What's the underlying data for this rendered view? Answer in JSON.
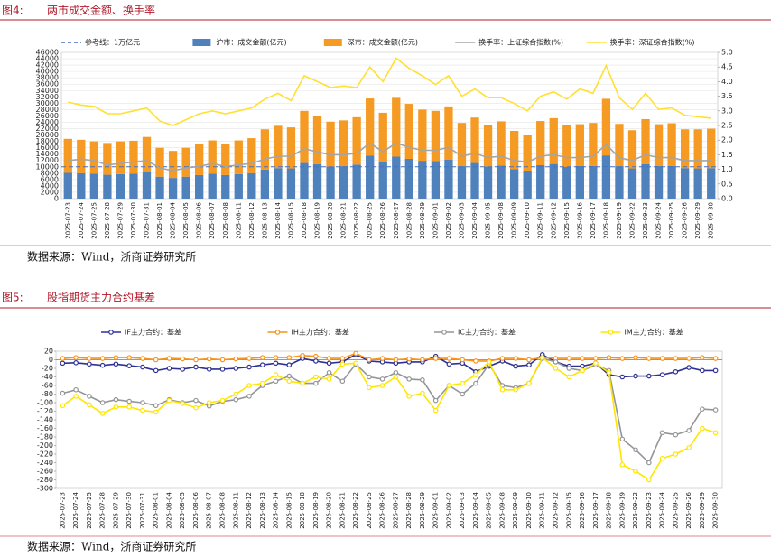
{
  "chart_data": [
    {
      "type": "bar",
      "figure_label": "图4:",
      "title": "两市成交金额、换手率",
      "source": "数据来源：Wind，浙商证券研究所",
      "grid": true,
      "categories": [
        "2025-07-23",
        "2025-07-24",
        "2025-07-25",
        "2025-07-28",
        "2025-07-29",
        "2025-07-30",
        "2025-07-31",
        "2025-08-01",
        "2025-08-04",
        "2025-08-05",
        "2025-08-06",
        "2025-08-07",
        "2025-08-08",
        "2025-08-11",
        "2025-08-12",
        "2025-08-13",
        "2025-08-14",
        "2025-08-15",
        "2025-08-18",
        "2025-08-19",
        "2025-08-20",
        "2025-08-21",
        "2025-08-22",
        "2025-08-25",
        "2025-08-26",
        "2025-08-27",
        "2025-08-28",
        "2025-08-29",
        "2025-09-01",
        "2025-09-02",
        "2025-09-03",
        "2025-09-04",
        "2025-09-05",
        "2025-09-08",
        "2025-09-09",
        "2025-09-10",
        "2025-09-11",
        "2025-09-12",
        "2025-09-15",
        "2025-09-16",
        "2025-09-17",
        "2025-09-18",
        "2025-09-19",
        "2025-09-22",
        "2025-09-23",
        "2025-09-24",
        "2025-09-25",
        "2025-09-26",
        "2025-09-29",
        "2025-09-30"
      ],
      "reference_line": {
        "name": "参考线：1万亿元",
        "value": 10000,
        "color": "#4472c4"
      },
      "series": [
        {
          "name": "沪市：成交金额(亿元)",
          "color": "#4f81bd",
          "values": [
            8100,
            8000,
            7800,
            7500,
            7700,
            7800,
            8300,
            6900,
            6500,
            6900,
            7400,
            7800,
            7400,
            7700,
            8000,
            9100,
            9600,
            9500,
            11200,
            10800,
            10100,
            10200,
            10700,
            13500,
            11400,
            13200,
            12500,
            11900,
            11800,
            12300,
            10200,
            11200,
            10100,
            10400,
            9300,
            8800,
            10500,
            10900,
            10000,
            10300,
            10300,
            13600,
            10200,
            9500,
            10800,
            10300,
            10300,
            9600,
            9500,
            9600
          ]
        },
        {
          "name": "深市：成交金额(亿元)",
          "color": "#f59a23",
          "values": [
            10700,
            10500,
            10200,
            10000,
            10300,
            10400,
            11100,
            9100,
            8500,
            9100,
            9800,
            10500,
            9800,
            10600,
            11000,
            12700,
            13300,
            12900,
            16400,
            15200,
            14100,
            14400,
            14900,
            18000,
            15600,
            18500,
            17300,
            16100,
            15800,
            16700,
            13600,
            14300,
            13100,
            13900,
            12000,
            11200,
            13900,
            14400,
            13000,
            13100,
            13500,
            17800,
            13300,
            12000,
            14200,
            13100,
            13400,
            12200,
            12300,
            12400
          ]
        },
        {
          "name": "换手率：上证综合指数(%)",
          "color": "#a5a5a5",
          "type": "line",
          "axis": "y2",
          "values": [
            1.3,
            1.35,
            1.3,
            1.15,
            1.2,
            1.25,
            1.3,
            1.05,
            0.95,
            1.05,
            1.1,
            1.2,
            1.1,
            1.15,
            1.2,
            1.35,
            1.45,
            1.45,
            1.7,
            1.6,
            1.5,
            1.5,
            1.55,
            1.9,
            1.6,
            1.9,
            1.75,
            1.65,
            1.65,
            1.75,
            1.45,
            1.55,
            1.4,
            1.45,
            1.3,
            1.25,
            1.45,
            1.5,
            1.4,
            1.4,
            1.45,
            1.85,
            1.4,
            1.3,
            1.5,
            1.4,
            1.4,
            1.3,
            1.3,
            1.3
          ]
        },
        {
          "name": "换手率：深证综合指数(%)",
          "color": "#ffe033",
          "type": "line",
          "axis": "y2",
          "values": [
            3.3,
            3.2,
            3.15,
            2.9,
            2.9,
            3.0,
            3.1,
            2.65,
            2.5,
            2.7,
            2.9,
            3.0,
            2.9,
            3.0,
            3.1,
            3.4,
            3.6,
            3.35,
            4.2,
            4.0,
            3.8,
            3.85,
            3.8,
            4.5,
            4.0,
            4.8,
            4.45,
            4.2,
            3.9,
            4.2,
            3.5,
            3.75,
            3.45,
            3.45,
            3.25,
            3.0,
            3.5,
            3.65,
            3.4,
            3.75,
            3.6,
            4.55,
            3.45,
            3.05,
            3.6,
            3.05,
            3.1,
            2.85,
            2.8,
            2.75
          ]
        }
      ],
      "ylim": [
        0,
        46000
      ],
      "yticks": [
        0,
        2000,
        4000,
        6000,
        8000,
        10000,
        12000,
        14000,
        16000,
        18000,
        20000,
        22000,
        24000,
        26000,
        28000,
        30000,
        32000,
        34000,
        36000,
        38000,
        40000,
        42000,
        44000,
        46000
      ],
      "y2lim": [
        0,
        5
      ],
      "y2ticks": [
        {
          "value": 0,
          "label": "0.0"
        },
        0.5,
        {
          "value": 1,
          "label": "1.0"
        },
        1.5,
        {
          "value": 2,
          "label": "2.0"
        },
        2.5,
        {
          "value": 3,
          "label": "3.0"
        },
        3.5,
        {
          "value": 4,
          "label": "4.0"
        },
        4.5,
        {
          "value": 5,
          "label": "5.0"
        }
      ]
    },
    {
      "type": "line",
      "figure_label": "图5:",
      "title": "股指期货主力合约基差",
      "source": "数据来源：Wind，浙商证券研究所",
      "grid": false,
      "marker": true,
      "categories": [
        "2025-07-23",
        "2025-07-24",
        "2025-07-25",
        "2025-07-28",
        "2025-07-29",
        "2025-07-30",
        "2025-07-31",
        "2025-08-01",
        "2025-08-04",
        "2025-08-05",
        "2025-08-06",
        "2025-08-07",
        "2025-08-08",
        "2025-08-11",
        "2025-08-12",
        "2025-08-13",
        "2025-08-14",
        "2025-08-15",
        "2025-08-18",
        "2025-08-19",
        "2025-08-20",
        "2025-08-21",
        "2025-08-22",
        "2025-08-25",
        "2025-08-26",
        "2025-08-27",
        "2025-08-28",
        "2025-08-29",
        "2025-09-01",
        "2025-09-02",
        "2025-09-03",
        "2025-09-04",
        "2025-09-05",
        "2025-09-08",
        "2025-09-09",
        "2025-09-10",
        "2025-09-11",
        "2025-09-12",
        "2025-09-15",
        "2025-09-16",
        "2025-09-17",
        "2025-09-18",
        "2025-09-19",
        "2025-09-22",
        "2025-09-23",
        "2025-09-24",
        "2025-09-25",
        "2025-09-26",
        "2025-09-29",
        "2025-09-30"
      ],
      "series": [
        {
          "name": "IF主力合约：基差",
          "color": "#2e3192",
          "values": [
            -8,
            -7,
            -10,
            -13,
            -10,
            -14,
            -17,
            -25,
            -20,
            -22,
            -17,
            -22,
            -22,
            -20,
            -17,
            -12,
            -8,
            -12,
            3,
            -3,
            -8,
            -5,
            12,
            -3,
            -5,
            -8,
            -5,
            -5,
            8,
            -10,
            -8,
            -28,
            -15,
            -3,
            -15,
            -12,
            12,
            -5,
            -15,
            -15,
            -8,
            -35,
            -40,
            -38,
            -38,
            -35,
            -28,
            -18,
            -25,
            -25
          ]
        },
        {
          "name": "IH主力合约：基差",
          "color": "#f7941d",
          "values": [
            3,
            5,
            3,
            3,
            5,
            5,
            3,
            0,
            3,
            2,
            0,
            2,
            0,
            2,
            3,
            5,
            5,
            5,
            10,
            8,
            3,
            3,
            15,
            0,
            3,
            0,
            2,
            0,
            3,
            3,
            0,
            -3,
            -3,
            3,
            3,
            0,
            5,
            3,
            3,
            3,
            3,
            5,
            3,
            5,
            3,
            3,
            3,
            3,
            5,
            3
          ]
        },
        {
          "name": "IC主力合约：基差",
          "color": "#939598",
          "values": [
            -78,
            -70,
            -85,
            -100,
            -93,
            -97,
            -100,
            -107,
            -93,
            -100,
            -95,
            -108,
            -97,
            -93,
            -85,
            -60,
            -50,
            -38,
            -55,
            -55,
            -30,
            -50,
            -10,
            -40,
            -45,
            -30,
            -45,
            -47,
            -95,
            -60,
            -80,
            -55,
            -10,
            -60,
            -65,
            -55,
            3,
            -5,
            -20,
            -25,
            -12,
            -25,
            -185,
            -210,
            -240,
            -170,
            -175,
            -165,
            -115,
            -117
          ]
        },
        {
          "name": "IM主力合约：基差",
          "color": "#ffe600",
          "values": [
            -107,
            -85,
            -105,
            -125,
            -110,
            -110,
            -118,
            -122,
            -95,
            -102,
            -112,
            -100,
            -95,
            -80,
            -60,
            -55,
            -35,
            -50,
            -55,
            -40,
            -45,
            -10,
            -8,
            -65,
            -60,
            -40,
            -85,
            -78,
            -118,
            -60,
            -55,
            -35,
            -5,
            -70,
            -70,
            -55,
            5,
            -20,
            -40,
            -25,
            -8,
            -30,
            -245,
            -260,
            -280,
            -230,
            -220,
            -205,
            -160,
            -170
          ]
        }
      ],
      "ylim": [
        -300,
        20
      ],
      "yticks": [
        20,
        0,
        -20,
        -40,
        -60,
        -80,
        -100,
        -120,
        -140,
        -160,
        -180,
        -200,
        -220,
        -240,
        -260,
        -280,
        -300
      ]
    }
  ]
}
